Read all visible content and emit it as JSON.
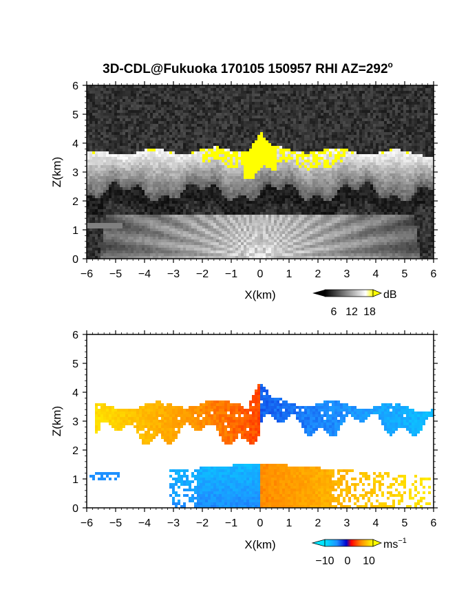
{
  "figure_title": "3D-CDL@Fukuoka 170105 150957 RHI AZ=292",
  "figure_title_sup": "o",
  "colors": {
    "reflectivity_saturation": "#ffff00",
    "velocity_scale": [
      "#00e5ff",
      "#1e90ff",
      "#0000cd",
      "#ff0000",
      "#ff8c00",
      "#ffff00"
    ]
  },
  "chart_data": [
    {
      "type": "heatmap",
      "quantity": "backscatter",
      "xlabel": "X(km)",
      "ylabel": "Z(km)",
      "xlim": [
        -6,
        6
      ],
      "ylim": [
        0,
        6
      ],
      "xticks": [
        "-6",
        "-5",
        "-4",
        "-3",
        "-2",
        "-1",
        "0",
        "1",
        "2",
        "3",
        "4",
        "5",
        "6"
      ],
      "yticks": [
        "0",
        "1",
        "2",
        "3",
        "4",
        "5",
        "6"
      ],
      "colorbar": {
        "ticks": [
          "6",
          "12",
          "18"
        ],
        "unit": "dB",
        "range": [
          0,
          20
        ]
      },
      "features": {
        "cloud_base_km": 2.3,
        "cloud_top_km": 3.8,
        "peak_top_km": 4.4,
        "peak_x_km": 0,
        "near_ground_fan_top_km": 1.5
      }
    },
    {
      "type": "heatmap",
      "quantity": "doppler_velocity",
      "xlabel": "X(km)",
      "ylabel": "Z(km)",
      "xlim": [
        -6,
        6
      ],
      "ylim": [
        0,
        6
      ],
      "xticks": [
        "-6",
        "-5",
        "-4",
        "-3",
        "-2",
        "-1",
        "0",
        "1",
        "2",
        "3",
        "4",
        "5",
        "6"
      ],
      "yticks": [
        "0",
        "1",
        "2",
        "3",
        "4",
        "5",
        "6"
      ],
      "colorbar": {
        "ticks": [
          "−10",
          "0",
          "10"
        ],
        "unit": "ms",
        "unit_exponent": "−1",
        "range": [
          -15,
          15
        ]
      },
      "features": {
        "upper_layer_km": [
          2.3,
          4.4
        ],
        "lower_layer_km": [
          0,
          1.6
        ],
        "upper_left_velocity": 10,
        "upper_right_velocity": -12,
        "lower_left_velocity": -9,
        "lower_right_velocity": 6
      }
    }
  ]
}
